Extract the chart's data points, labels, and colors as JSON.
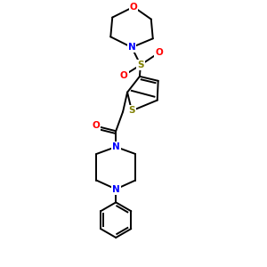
{
  "bg_color": "#ffffff",
  "atom_colors": {
    "O": "#ff0000",
    "N": "#0000ff",
    "S": "#808000",
    "C": "#000000"
  },
  "line_color": "#000000",
  "line_width": 1.4,
  "figsize": [
    3.0,
    3.0
  ],
  "dpi": 100
}
